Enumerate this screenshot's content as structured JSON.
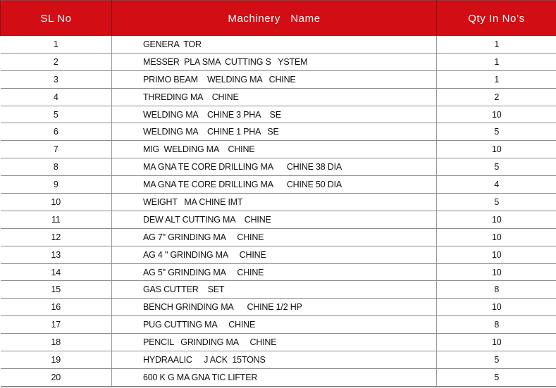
{
  "header": {
    "sl_no": "SL No",
    "machinery_name": "Machinery   Name",
    "qty": "Qty In No’s"
  },
  "colors": {
    "header_bg": "#d30d14",
    "header_text": "#ffffff"
  },
  "rows": [
    {
      "sl": "1",
      "name": "GENERA  TOR",
      "qty": "1"
    },
    {
      "sl": "2",
      "name": "MESSER  PLA SMA  CUTTING S   YSTEM",
      "qty": "1"
    },
    {
      "sl": "3",
      "name": "PRIMO BEAM    WELDING MA   CHINE",
      "qty": "1"
    },
    {
      "sl": "4",
      "name": "THREDING MA    CHINE",
      "qty": "2"
    },
    {
      "sl": "5",
      "name": "WELDING MA    CHINE 3 PHA    SE",
      "qty": "10"
    },
    {
      "sl": "6",
      "name": "WELDING MA    CHINE 1 PHA   SE",
      "qty": "5"
    },
    {
      "sl": "7",
      "name": "MIG  WELDING MA    CHINE",
      "qty": "10"
    },
    {
      "sl": "8",
      "name": "MA GNA TE CORE DRILLING MA      CHINE 38 DIA",
      "qty": "5"
    },
    {
      "sl": "9",
      "name": "MA GNA TE CORE DRILLING MA      CHINE 50 DIA",
      "qty": "4"
    },
    {
      "sl": "10",
      "name": "WEIGHT   MA CHINE IMT",
      "qty": "5"
    },
    {
      "sl": "11",
      "name": "DEW ALT CUTTING MA    CHINE",
      "qty": "10"
    },
    {
      "sl": "12",
      "name": "AG 7\" GRINDING MA     CHINE",
      "qty": "10"
    },
    {
      "sl": "13",
      "name": "AG 4 \" GRINDING MA     CHINE",
      "qty": "10"
    },
    {
      "sl": "14",
      "name": "AG 5\" GRINDING MA     CHINE",
      "qty": "10"
    },
    {
      "sl": "15",
      "name": "GAS CUTTER    SET",
      "qty": "8"
    },
    {
      "sl": "16",
      "name": "BENCH GRINDING MA      CHINE 1/2 HP",
      "qty": "10"
    },
    {
      "sl": "17",
      "name": "PUG CUTTING MA     CHINE",
      "qty": "8"
    },
    {
      "sl": "18",
      "name": "PENCIL   GRINDING MA     CHINE",
      "qty": "10"
    },
    {
      "sl": "19",
      "name": "HYDRAALIC     J ACK  15TONS",
      "qty": "5"
    },
    {
      "sl": "20",
      "name": "600 K G MA GNA TIC LIFTER",
      "qty": "5"
    }
  ]
}
